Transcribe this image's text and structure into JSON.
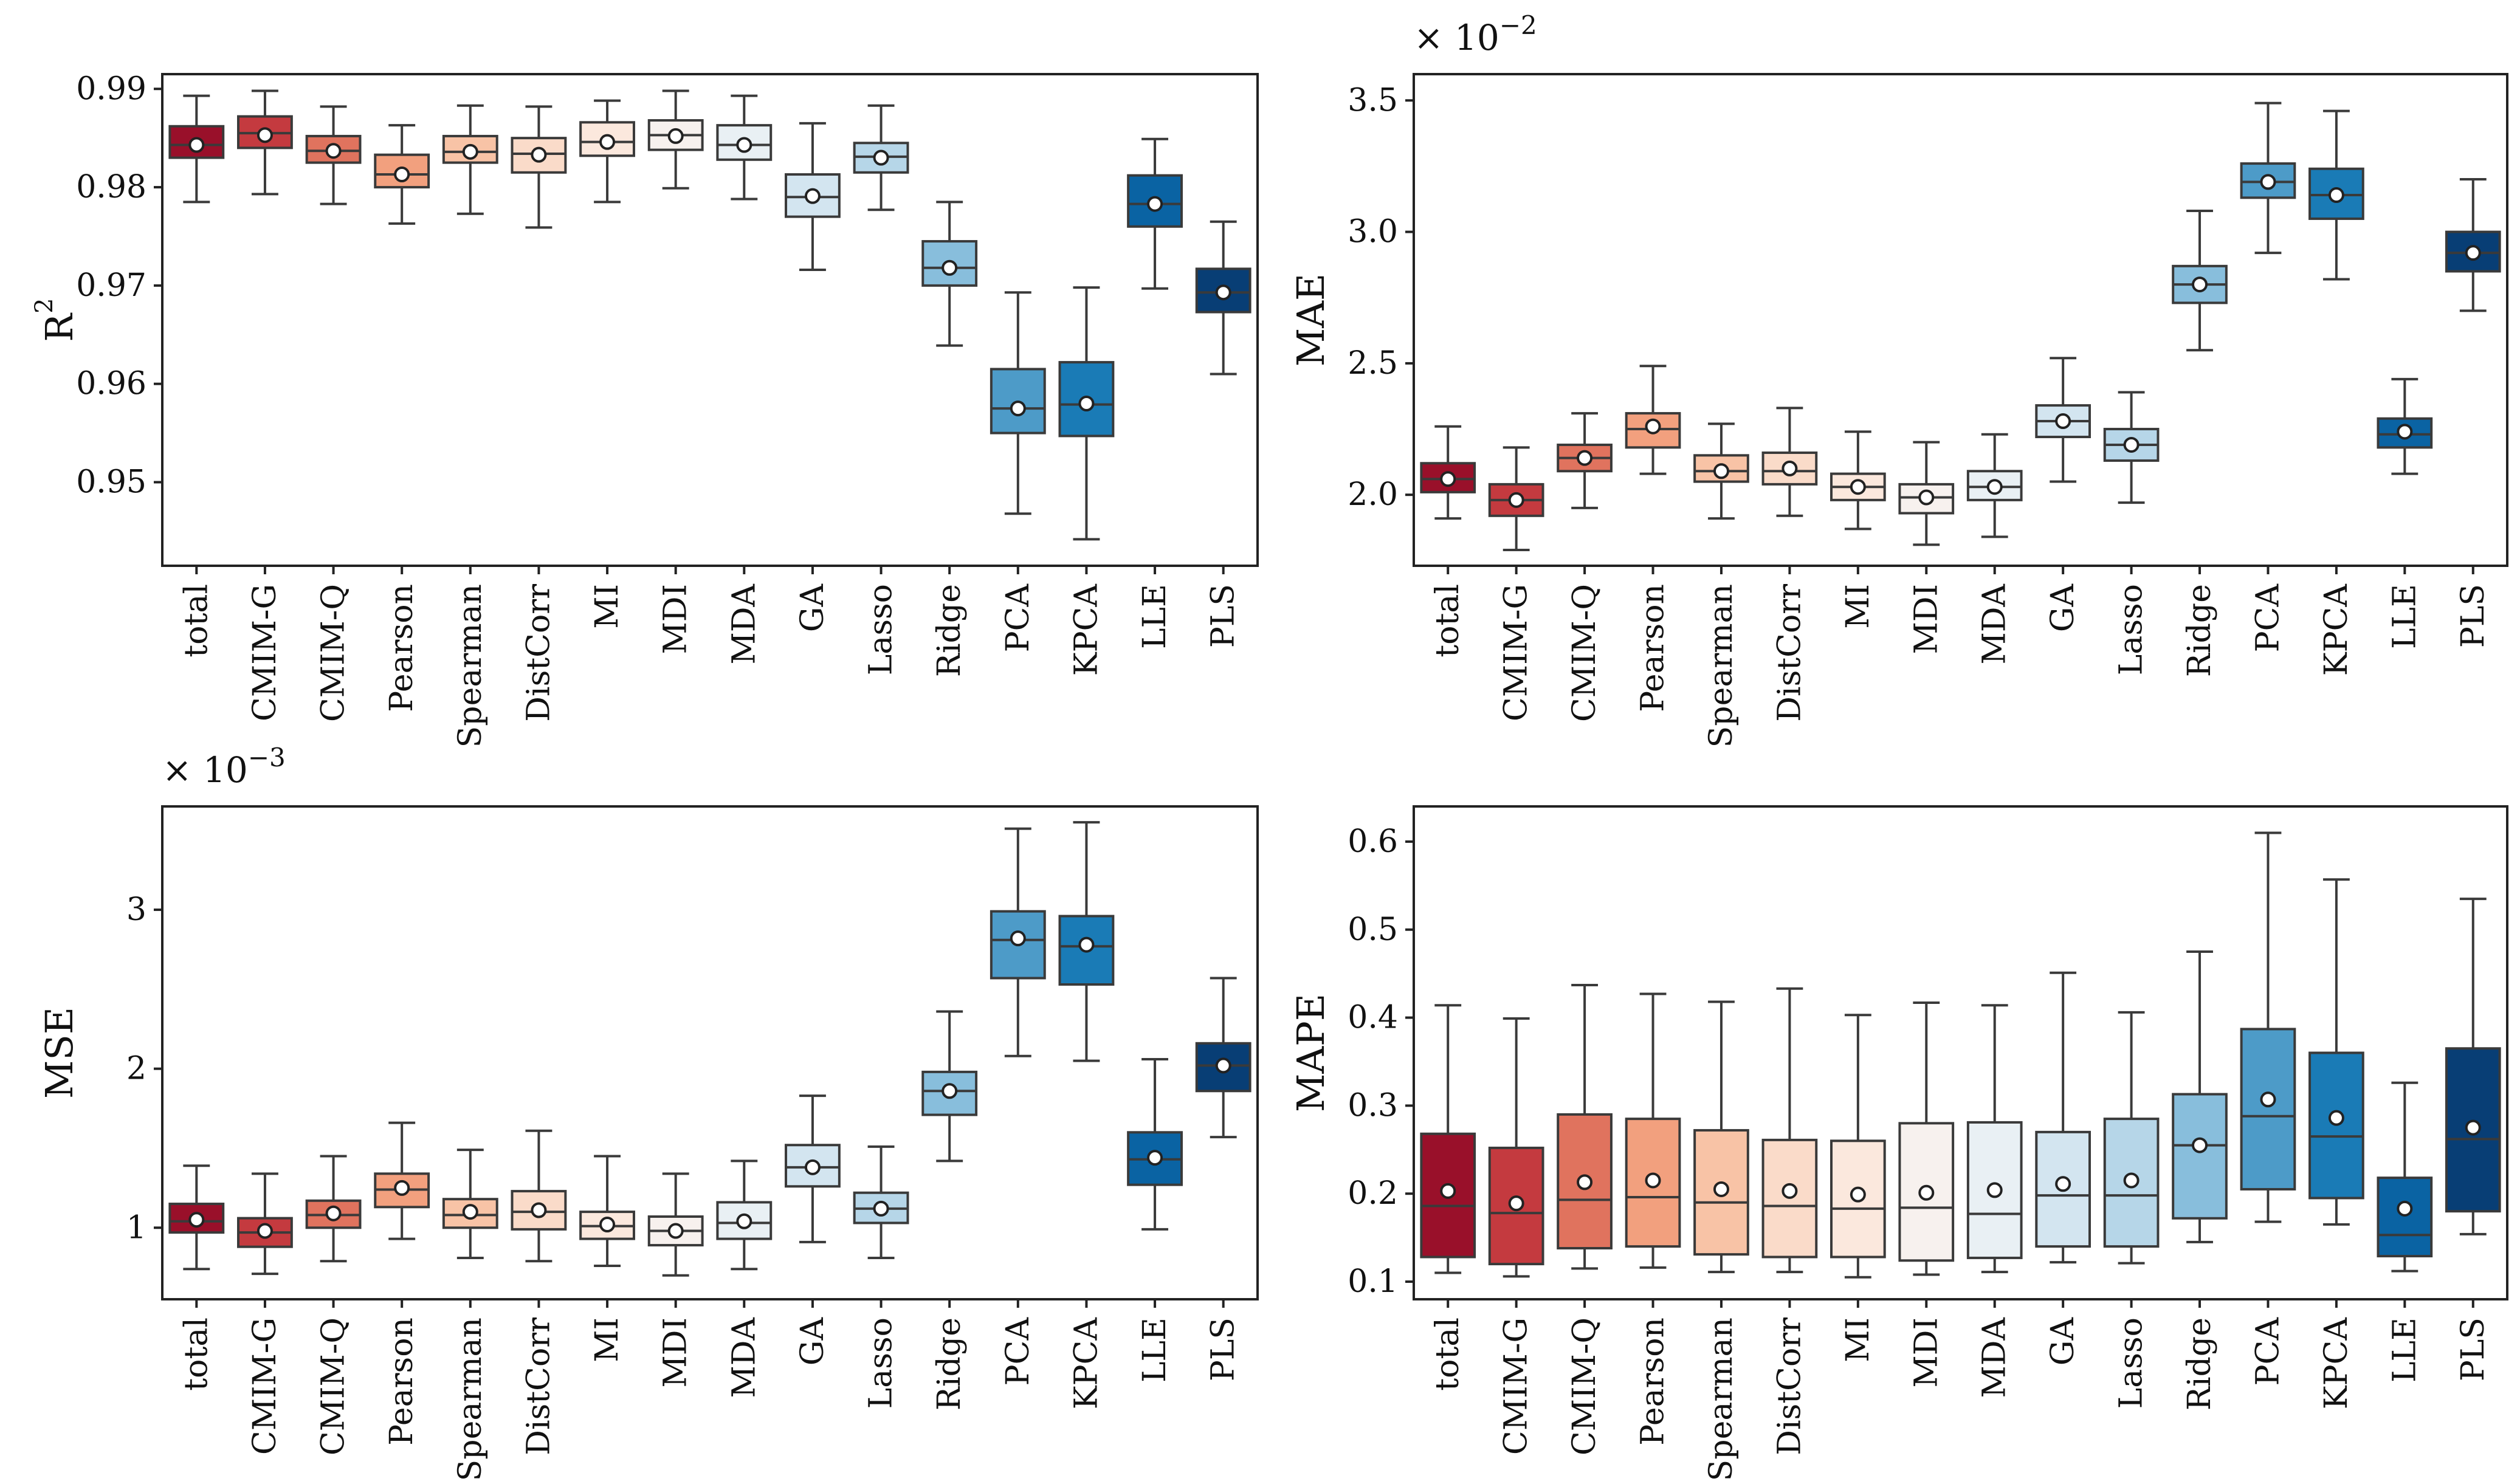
{
  "categories": [
    "total",
    "CMIM-G",
    "CMIM-Q",
    "Pearson",
    "Spearman",
    "DistCorr",
    "MI",
    "MDI",
    "MDA",
    "GA",
    "Lasso",
    "Ridge",
    "PCA",
    "KPCA",
    "LLE",
    "PLS"
  ],
  "colors": [
    "#99102a",
    "#c43a3f",
    "#e0735e",
    "#f2a07e",
    "#f8c3a6",
    "#fadbc9",
    "#fbe8dd",
    "#f7f1ee",
    "#e9f0f4",
    "#d3e5f0",
    "#b6d6e8",
    "#88bedc",
    "#4d9bc8",
    "#1a7bb6",
    "#0a63a3",
    "#083e75"
  ],
  "chart_data": [
    {
      "type": "box",
      "ylabel": "R",
      "ylabel_sup": "2",
      "multiplier": "",
      "multiplier_exp": "",
      "ylim": [
        0.9415,
        0.9915
      ],
      "yticks": [
        0.95,
        0.96,
        0.97,
        0.98,
        0.99
      ],
      "ytick_labels": [
        "0.95",
        "0.96",
        "0.97",
        "0.98",
        "0.99"
      ],
      "boxes": [
        {
          "name": "total",
          "wlo": 0.9785,
          "q1": 0.983,
          "median": 0.9843,
          "q3": 0.9862,
          "whi": 0.9893,
          "mean": 0.9843
        },
        {
          "name": "CMIM-G",
          "wlo": 0.9793,
          "q1": 0.984,
          "median": 0.9855,
          "q3": 0.9872,
          "whi": 0.9898,
          "mean": 0.9853
        },
        {
          "name": "CMIM-Q",
          "wlo": 0.9783,
          "q1": 0.9825,
          "median": 0.9837,
          "q3": 0.9852,
          "whi": 0.9882,
          "mean": 0.9837
        },
        {
          "name": "Pearson",
          "wlo": 0.9763,
          "q1": 0.98,
          "median": 0.9813,
          "q3": 0.9833,
          "whi": 0.9863,
          "mean": 0.9813
        },
        {
          "name": "Spearman",
          "wlo": 0.9773,
          "q1": 0.9825,
          "median": 0.9836,
          "q3": 0.9852,
          "whi": 0.9883,
          "mean": 0.9836
        },
        {
          "name": "DistCorr",
          "wlo": 0.9759,
          "q1": 0.9815,
          "median": 0.9834,
          "q3": 0.985,
          "whi": 0.9882,
          "mean": 0.9833
        },
        {
          "name": "MI",
          "wlo": 0.9785,
          "q1": 0.9832,
          "median": 0.9846,
          "q3": 0.9866,
          "whi": 0.9888,
          "mean": 0.9846
        },
        {
          "name": "MDI",
          "wlo": 0.9799,
          "q1": 0.9838,
          "median": 0.9853,
          "q3": 0.9868,
          "whi": 0.9898,
          "mean": 0.9852
        },
        {
          "name": "MDA",
          "wlo": 0.9788,
          "q1": 0.9828,
          "median": 0.9843,
          "q3": 0.9863,
          "whi": 0.9893,
          "mean": 0.9843
        },
        {
          "name": "GA",
          "wlo": 0.9716,
          "q1": 0.977,
          "median": 0.979,
          "q3": 0.9813,
          "whi": 0.9865,
          "mean": 0.9791
        },
        {
          "name": "Lasso",
          "wlo": 0.9777,
          "q1": 0.9815,
          "median": 0.9831,
          "q3": 0.9845,
          "whi": 0.9883,
          "mean": 0.983
        },
        {
          "name": "Ridge",
          "wlo": 0.9639,
          "q1": 0.97,
          "median": 0.9718,
          "q3": 0.9745,
          "whi": 0.9785,
          "mean": 0.9718
        },
        {
          "name": "PCA",
          "wlo": 0.9468,
          "q1": 0.955,
          "median": 0.9575,
          "q3": 0.9615,
          "whi": 0.9693,
          "mean": 0.9575
        },
        {
          "name": "KPCA",
          "wlo": 0.9442,
          "q1": 0.9547,
          "median": 0.9579,
          "q3": 0.9622,
          "whi": 0.9698,
          "mean": 0.958
        },
        {
          "name": "LLE",
          "wlo": 0.9697,
          "q1": 0.976,
          "median": 0.9783,
          "q3": 0.9812,
          "whi": 0.9849,
          "mean": 0.9783
        },
        {
          "name": "PLS",
          "wlo": 0.961,
          "q1": 0.9673,
          "median": 0.9693,
          "q3": 0.9717,
          "whi": 0.9765,
          "mean": 0.9693
        }
      ]
    },
    {
      "type": "box",
      "ylabel": "MAE",
      "ylabel_sup": "",
      "multiplier": "× 10",
      "multiplier_exp": "−2",
      "ylim": [
        1.73,
        3.6
      ],
      "yticks": [
        2.0,
        2.5,
        3.0,
        3.5
      ],
      "ytick_labels": [
        "2.0",
        "2.5",
        "3.0",
        "3.5"
      ],
      "boxes": [
        {
          "name": "total",
          "wlo": 1.91,
          "q1": 2.01,
          "median": 2.06,
          "q3": 2.12,
          "whi": 2.26,
          "mean": 2.06
        },
        {
          "name": "CMIM-G",
          "wlo": 1.79,
          "q1": 1.92,
          "median": 1.98,
          "q3": 2.04,
          "whi": 2.18,
          "mean": 1.98
        },
        {
          "name": "CMIM-Q",
          "wlo": 1.95,
          "q1": 2.09,
          "median": 2.14,
          "q3": 2.19,
          "whi": 2.31,
          "mean": 2.14
        },
        {
          "name": "Pearson",
          "wlo": 2.08,
          "q1": 2.18,
          "median": 2.25,
          "q3": 2.31,
          "whi": 2.49,
          "mean": 2.26
        },
        {
          "name": "Spearman",
          "wlo": 1.91,
          "q1": 2.05,
          "median": 2.09,
          "q3": 2.15,
          "whi": 2.27,
          "mean": 2.09
        },
        {
          "name": "DistCorr",
          "wlo": 1.92,
          "q1": 2.04,
          "median": 2.09,
          "q3": 2.16,
          "whi": 2.33,
          "mean": 2.1
        },
        {
          "name": "MI",
          "wlo": 1.87,
          "q1": 1.98,
          "median": 2.03,
          "q3": 2.08,
          "whi": 2.24,
          "mean": 2.03
        },
        {
          "name": "MDI",
          "wlo": 1.81,
          "q1": 1.93,
          "median": 1.99,
          "q3": 2.04,
          "whi": 2.2,
          "mean": 1.99
        },
        {
          "name": "MDA",
          "wlo": 1.84,
          "q1": 1.98,
          "median": 2.03,
          "q3": 2.09,
          "whi": 2.23,
          "mean": 2.03
        },
        {
          "name": "GA",
          "wlo": 2.05,
          "q1": 2.22,
          "median": 2.28,
          "q3": 2.34,
          "whi": 2.52,
          "mean": 2.28
        },
        {
          "name": "Lasso",
          "wlo": 1.97,
          "q1": 2.13,
          "median": 2.19,
          "q3": 2.25,
          "whi": 2.39,
          "mean": 2.19
        },
        {
          "name": "Ridge",
          "wlo": 2.55,
          "q1": 2.73,
          "median": 2.8,
          "q3": 2.87,
          "whi": 3.08,
          "mean": 2.8
        },
        {
          "name": "PCA",
          "wlo": 2.92,
          "q1": 3.13,
          "median": 3.19,
          "q3": 3.26,
          "whi": 3.49,
          "mean": 3.19
        },
        {
          "name": "KPCA",
          "wlo": 2.82,
          "q1": 3.05,
          "median": 3.14,
          "q3": 3.24,
          "whi": 3.46,
          "mean": 3.14
        },
        {
          "name": "LLE",
          "wlo": 2.08,
          "q1": 2.18,
          "median": 2.23,
          "q3": 2.29,
          "whi": 2.44,
          "mean": 2.24
        },
        {
          "name": "PLS",
          "wlo": 2.7,
          "q1": 2.85,
          "median": 2.92,
          "q3": 3.0,
          "whi": 3.2,
          "mean": 2.92
        }
      ]
    },
    {
      "type": "box",
      "ylabel": "MSE",
      "ylabel_sup": "",
      "multiplier": "× 10",
      "multiplier_exp": "−3",
      "ylim": [
        0.55,
        3.65
      ],
      "yticks": [
        1,
        2,
        3
      ],
      "ytick_labels": [
        "1",
        "2",
        "3"
      ],
      "boxes": [
        {
          "name": "total",
          "wlo": 0.74,
          "q1": 0.97,
          "median": 1.04,
          "q3": 1.15,
          "whi": 1.39,
          "mean": 1.05
        },
        {
          "name": "CMIM-G",
          "wlo": 0.71,
          "q1": 0.88,
          "median": 0.97,
          "q3": 1.06,
          "whi": 1.34,
          "mean": 0.98
        },
        {
          "name": "CMIM-Q",
          "wlo": 0.79,
          "q1": 1.0,
          "median": 1.08,
          "q3": 1.17,
          "whi": 1.45,
          "mean": 1.09
        },
        {
          "name": "Pearson",
          "wlo": 0.93,
          "q1": 1.13,
          "median": 1.24,
          "q3": 1.34,
          "whi": 1.66,
          "mean": 1.25
        },
        {
          "name": "Spearman",
          "wlo": 0.81,
          "q1": 1.0,
          "median": 1.08,
          "q3": 1.18,
          "whi": 1.49,
          "mean": 1.1
        },
        {
          "name": "DistCorr",
          "wlo": 0.79,
          "q1": 0.99,
          "median": 1.1,
          "q3": 1.23,
          "whi": 1.61,
          "mean": 1.11
        },
        {
          "name": "MI",
          "wlo": 0.76,
          "q1": 0.93,
          "median": 1.01,
          "q3": 1.1,
          "whi": 1.45,
          "mean": 1.02
        },
        {
          "name": "MDI",
          "wlo": 0.7,
          "q1": 0.89,
          "median": 0.98,
          "q3": 1.07,
          "whi": 1.34,
          "mean": 0.98
        },
        {
          "name": "MDA",
          "wlo": 0.74,
          "q1": 0.93,
          "median": 1.03,
          "q3": 1.16,
          "whi": 1.42,
          "mean": 1.04
        },
        {
          "name": "GA",
          "wlo": 0.91,
          "q1": 1.26,
          "median": 1.38,
          "q3": 1.52,
          "whi": 1.83,
          "mean": 1.38
        },
        {
          "name": "Lasso",
          "wlo": 0.81,
          "q1": 1.03,
          "median": 1.12,
          "q3": 1.22,
          "whi": 1.51,
          "mean": 1.12
        },
        {
          "name": "Ridge",
          "wlo": 1.42,
          "q1": 1.71,
          "median": 1.86,
          "q3": 1.98,
          "whi": 2.36,
          "mean": 1.86
        },
        {
          "name": "PCA",
          "wlo": 2.08,
          "q1": 2.57,
          "median": 2.81,
          "q3": 2.99,
          "whi": 3.51,
          "mean": 2.82
        },
        {
          "name": "KPCA",
          "wlo": 2.05,
          "q1": 2.53,
          "median": 2.77,
          "q3": 2.96,
          "whi": 3.55,
          "mean": 2.78
        },
        {
          "name": "LLE",
          "wlo": 0.99,
          "q1": 1.27,
          "median": 1.43,
          "q3": 1.6,
          "whi": 2.06,
          "mean": 1.44
        },
        {
          "name": "PLS",
          "wlo": 1.57,
          "q1": 1.86,
          "median": 2.02,
          "q3": 2.16,
          "whi": 2.57,
          "mean": 2.02
        }
      ]
    },
    {
      "type": "box",
      "ylabel": "MAPE",
      "ylabel_sup": "",
      "multiplier": "",
      "multiplier_exp": "",
      "ylim": [
        0.08,
        0.64
      ],
      "yticks": [
        0.1,
        0.2,
        0.3,
        0.4,
        0.5,
        0.6
      ],
      "ytick_labels": [
        "0.1",
        "0.2",
        "0.3",
        "0.4",
        "0.5",
        "0.6"
      ],
      "boxes": [
        {
          "name": "total",
          "wlo": 0.11,
          "q1": 0.128,
          "median": 0.186,
          "q3": 0.268,
          "whi": 0.414,
          "mean": 0.203
        },
        {
          "name": "CMIM-G",
          "wlo": 0.106,
          "q1": 0.12,
          "median": 0.178,
          "q3": 0.252,
          "whi": 0.399,
          "mean": 0.189
        },
        {
          "name": "CMIM-Q",
          "wlo": 0.115,
          "q1": 0.138,
          "median": 0.193,
          "q3": 0.29,
          "whi": 0.437,
          "mean": 0.213
        },
        {
          "name": "Pearson",
          "wlo": 0.116,
          "q1": 0.14,
          "median": 0.196,
          "q3": 0.285,
          "whi": 0.427,
          "mean": 0.215
        },
        {
          "name": "Spearman",
          "wlo": 0.111,
          "q1": 0.131,
          "median": 0.19,
          "q3": 0.272,
          "whi": 0.418,
          "mean": 0.205
        },
        {
          "name": "DistCorr",
          "wlo": 0.111,
          "q1": 0.128,
          "median": 0.186,
          "q3": 0.261,
          "whi": 0.433,
          "mean": 0.203
        },
        {
          "name": "MI",
          "wlo": 0.105,
          "q1": 0.128,
          "median": 0.183,
          "q3": 0.26,
          "whi": 0.403,
          "mean": 0.199
        },
        {
          "name": "MDI",
          "wlo": 0.108,
          "q1": 0.124,
          "median": 0.184,
          "q3": 0.28,
          "whi": 0.417,
          "mean": 0.201
        },
        {
          "name": "MDA",
          "wlo": 0.111,
          "q1": 0.127,
          "median": 0.177,
          "q3": 0.281,
          "whi": 0.414,
          "mean": 0.204
        },
        {
          "name": "GA",
          "wlo": 0.122,
          "q1": 0.14,
          "median": 0.198,
          "q3": 0.27,
          "whi": 0.451,
          "mean": 0.211
        },
        {
          "name": "Lasso",
          "wlo": 0.121,
          "q1": 0.14,
          "median": 0.198,
          "q3": 0.285,
          "whi": 0.406,
          "mean": 0.215
        },
        {
          "name": "Ridge",
          "wlo": 0.145,
          "q1": 0.172,
          "median": 0.255,
          "q3": 0.313,
          "whi": 0.475,
          "mean": 0.255
        },
        {
          "name": "PCA",
          "wlo": 0.168,
          "q1": 0.205,
          "median": 0.288,
          "q3": 0.387,
          "whi": 0.61,
          "mean": 0.307
        },
        {
          "name": "KPCA",
          "wlo": 0.165,
          "q1": 0.195,
          "median": 0.265,
          "q3": 0.36,
          "whi": 0.557,
          "mean": 0.286
        },
        {
          "name": "LLE",
          "wlo": 0.112,
          "q1": 0.129,
          "median": 0.153,
          "q3": 0.218,
          "whi": 0.326,
          "mean": 0.183
        },
        {
          "name": "PLS",
          "wlo": 0.154,
          "q1": 0.18,
          "median": 0.262,
          "q3": 0.365,
          "whi": 0.535,
          "mean": 0.275
        }
      ]
    }
  ]
}
